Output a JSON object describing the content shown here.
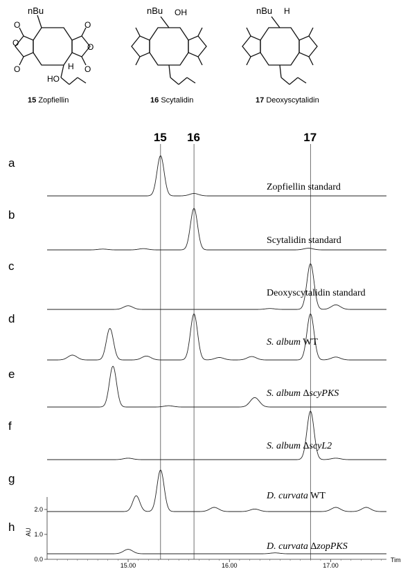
{
  "compounds": [
    {
      "number": "15",
      "name": "Zopfiellin",
      "substituents": [
        "nBu",
        "H",
        "HO"
      ]
    },
    {
      "number": "16",
      "name": "Scytalidin",
      "substituents": [
        "nBu",
        "OH"
      ]
    },
    {
      "number": "17",
      "name": "Deoxyscytalidin",
      "substituents": [
        "nBu",
        "H"
      ]
    }
  ],
  "peak_labels": [
    "15",
    "16",
    "17"
  ],
  "peak_times": [
    15.32,
    15.65,
    16.8
  ],
  "traces": [
    {
      "letter": "a",
      "label_italic": "",
      "label_roman": "Zopfiellin standard"
    },
    {
      "letter": "b",
      "label_italic": "",
      "label_roman": "Scytalidin standard"
    },
    {
      "letter": "c",
      "label_italic": "",
      "label_roman": "Deoxyscytalidin standard"
    },
    {
      "letter": "d",
      "label_italic": "S. album",
      "label_roman": " WT"
    },
    {
      "letter": "e",
      "label_italic": "S. album",
      "label_roman": " Δ",
      "label_italic2": "scyPKS"
    },
    {
      "letter": "f",
      "label_italic": "S. album",
      "label_roman": " Δ",
      "label_italic2": "scyL2"
    },
    {
      "letter": "g",
      "label_italic": "D. curvata",
      "label_roman": " WT"
    },
    {
      "letter": "h",
      "label_italic": "D. curvata",
      "label_roman": " Δ",
      "label_italic2": "zopPKS"
    }
  ],
  "axes": {
    "ylabel": "AU",
    "yticks": [
      "0.0",
      "1.0",
      "2.0"
    ],
    "xlabel": "Time",
    "xticks": [
      "15.00",
      "16.00",
      "17.00"
    ]
  },
  "chart_data": {
    "type": "line",
    "xlabel": "Time",
    "ylabel": "AU",
    "xticks": [
      15.0,
      16.0,
      17.0
    ],
    "yticks": [
      0.0,
      1.0,
      2.0
    ],
    "xlim": [
      14.2,
      17.55
    ],
    "reference_lines": [
      15.32,
      15.65,
      16.8
    ],
    "series": [
      {
        "name": "Zopfiellin standard",
        "peaks": [
          [
            15.32,
            1.0
          ],
          [
            15.65,
            0.06
          ]
        ]
      },
      {
        "name": "Scytalidin standard",
        "peaks": [
          [
            15.65,
            1.0
          ],
          [
            14.75,
            0.02
          ],
          [
            15.15,
            0.03
          ],
          [
            16.78,
            0.04
          ]
        ]
      },
      {
        "name": "Deoxyscytalidin standard",
        "peaks": [
          [
            16.8,
            1.0
          ],
          [
            15.0,
            0.08
          ],
          [
            17.05,
            0.1
          ],
          [
            16.4,
            0.02
          ]
        ]
      },
      {
        "name": "S. album WT",
        "peaks": [
          [
            14.82,
            0.65
          ],
          [
            15.65,
            0.95
          ],
          [
            16.8,
            0.95
          ],
          [
            14.45,
            0.1
          ],
          [
            15.18,
            0.08
          ],
          [
            15.9,
            0.05
          ],
          [
            16.22,
            0.07
          ],
          [
            17.05,
            0.06
          ]
        ]
      },
      {
        "name": "S. album ΔscyPKS",
        "peaks": [
          [
            14.85,
            0.95
          ],
          [
            16.25,
            0.22
          ],
          [
            14.05,
            0.04
          ],
          [
            15.4,
            0.03
          ]
        ]
      },
      {
        "name": "S. album ΔscyL2",
        "peaks": [
          [
            16.8,
            1.0
          ],
          [
            15.0,
            0.03
          ],
          [
            17.05,
            0.03
          ]
        ]
      },
      {
        "name": "D. curvata WT",
        "peaks": [
          [
            15.32,
            1.0
          ],
          [
            15.08,
            0.38
          ],
          [
            15.85,
            0.1
          ],
          [
            16.25,
            0.06
          ],
          [
            17.05,
            0.1
          ],
          [
            17.35,
            0.1
          ]
        ]
      },
      {
        "name": "D. curvata ΔzopPKS",
        "peaks": [
          [
            15.0,
            0.1
          ],
          [
            16.45,
            0.02
          ]
        ]
      }
    ]
  }
}
